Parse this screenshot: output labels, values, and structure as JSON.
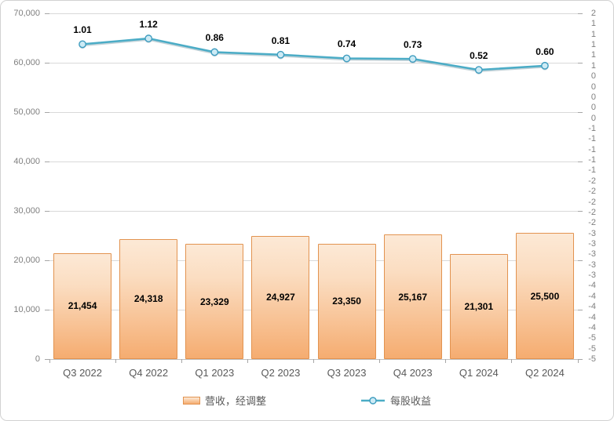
{
  "chart_data": {
    "type": "combo",
    "categories": [
      "Q3 2022",
      "Q4 2022",
      "Q1 2023",
      "Q2 2023",
      "Q3 2023",
      "Q4 2023",
      "Q1 2024",
      "Q2 2024"
    ],
    "series": [
      {
        "name": "营收，经调整",
        "type": "bar",
        "axis": "left",
        "values": [
          21454,
          24318,
          23329,
          24927,
          23350,
          25167,
          21301,
          25500
        ],
        "data_labels": [
          "21,454",
          "24,318",
          "23,329",
          "24,927",
          "23,350",
          "25,167",
          "21,301",
          "25,500"
        ]
      },
      {
        "name": "每股收益",
        "type": "line",
        "axis": "right",
        "values": [
          1.01,
          1.12,
          0.86,
          0.81,
          0.74,
          0.73,
          0.52,
          0.6
        ],
        "data_labels": [
          "1.01",
          "1.12",
          "0.86",
          "0.81",
          "0.74",
          "0.73",
          "0.52",
          "0.60"
        ]
      }
    ],
    "left_axis": {
      "min": 0,
      "max": 70000,
      "tick_labels": [
        "70,000",
        "60,000",
        "50,000",
        "40,000",
        "30,000",
        "20,000",
        "10,000",
        "0"
      ]
    },
    "right_axis": {
      "min": -5.0,
      "max": 1.6,
      "step": 0.2,
      "tick_labels": [
        "2",
        "1",
        "1",
        "1",
        "1",
        "1",
        "0",
        "0",
        "0",
        "0",
        "0",
        "-1",
        "-1",
        "-1",
        "-1",
        "-1",
        "-2",
        "-2",
        "-2",
        "-2",
        "-2",
        "-3",
        "-3",
        "-3",
        "-3",
        "-3",
        "-4",
        "-4",
        "-4",
        "-4",
        "-4",
        "-5",
        "-5",
        "-5"
      ]
    },
    "legend": {
      "position": "bottom",
      "bar_label": "营收，经调整",
      "line_label": "每股收益"
    },
    "grid": true,
    "colors": {
      "bar_fill_top": "#fce9d6",
      "bar_fill_bottom": "#f5ac70",
      "bar_border": "#e29350",
      "line": "#4bacc6",
      "marker_fill": "#cdebf5",
      "marker_border": "#3e9cbf",
      "gridline": "#d9d9d9",
      "axis_text": "#7f7f7f",
      "category_text": "#595959",
      "data_label_text": "#000000"
    }
  }
}
